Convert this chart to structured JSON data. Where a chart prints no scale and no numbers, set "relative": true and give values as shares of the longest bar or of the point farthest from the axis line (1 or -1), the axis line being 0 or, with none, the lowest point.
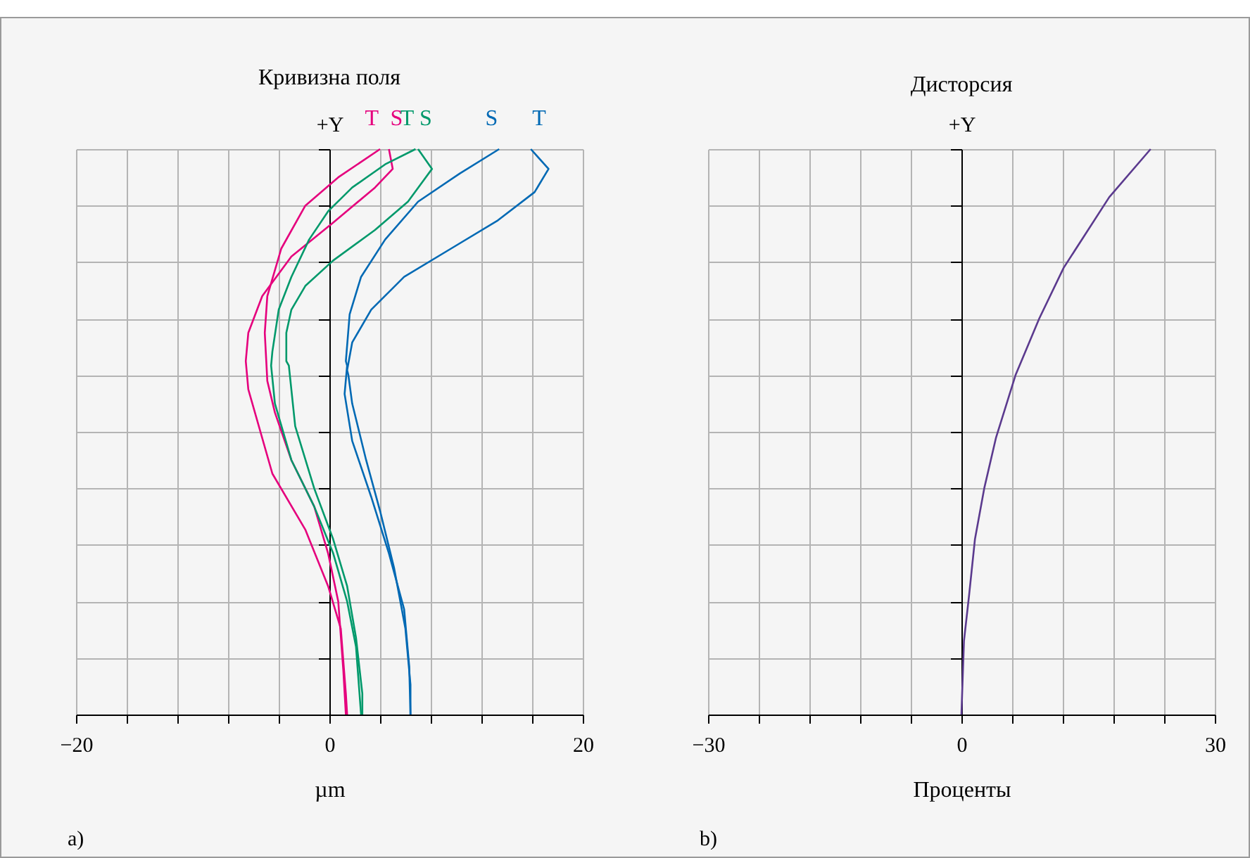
{
  "chart_data": [
    {
      "type": "line",
      "title": "Кривизна поля",
      "xlabel": "µm",
      "ylabel": "+Y",
      "relative": true,
      "grid": true,
      "annotations": [
        "a)"
      ],
      "xlim": [
        -20,
        20
      ],
      "xticks": [
        {
          "value": -20,
          "label": "−20"
        },
        {
          "value": -16,
          "label": null
        },
        {
          "value": -12,
          "label": null
        },
        {
          "value": -8,
          "label": null
        },
        {
          "value": -4,
          "label": null
        },
        0,
        {
          "value": 4,
          "label": null
        },
        {
          "value": 8,
          "label": null
        },
        {
          "value": 12,
          "label": null
        },
        {
          "value": 16,
          "label": null
        },
        20
      ],
      "series": [
        {
          "name": "T",
          "color": "#e5007d",
          "x": [
            1.3,
            1.1,
            0.7,
            -0.1,
            -1.2,
            -3.0,
            -4.3,
            -4.9,
            -5.1,
            -4.9,
            -3.8,
            -1.9,
            0.7,
            4.0
          ],
          "values": [
            0,
            0.078,
            0.2,
            0.285,
            0.368,
            0.45,
            0.534,
            0.59,
            0.675,
            0.74,
            0.824,
            0.9,
            0.95,
            1.0
          ]
        },
        {
          "name": "S",
          "color": "#e5007d",
          "x": [
            1.4,
            1.3,
            0.9,
            -0.1,
            -1.9,
            -4.5,
            -6.4,
            -6.6,
            -6.4,
            -5.3,
            -3.0,
            0.3,
            3.6,
            5.0,
            4.7
          ],
          "values": [
            0,
            0.037,
            0.152,
            0.227,
            0.327,
            0.426,
            0.575,
            0.625,
            0.675,
            0.74,
            0.81,
            0.87,
            0.932,
            0.965,
            1.0
          ]
        },
        {
          "name": "T",
          "color": "#00996b",
          "x": [
            2.5,
            2.1,
            1.4,
            0.3,
            -1.2,
            -3.0,
            -4.3,
            -4.6,
            -4.5,
            -4.0,
            -3.0,
            -1.6,
            -0.1,
            1.8,
            4.4,
            6.8
          ],
          "values": [
            0,
            0.12,
            0.2,
            0.285,
            0.368,
            0.45,
            0.55,
            0.617,
            0.642,
            0.716,
            0.774,
            0.84,
            0.89,
            0.932,
            0.973,
            1.0
          ]
        },
        {
          "name": "S",
          "color": "#00996b",
          "x": [
            2.6,
            2.6,
            2.1,
            1.4,
            0.3,
            -1.2,
            -2.7,
            -3.2,
            -3.4,
            -3.4,
            -3.0,
            -1.9,
            0.3,
            3.6,
            6.2,
            8.1,
            7.0
          ],
          "values": [
            0,
            0.037,
            0.136,
            0.227,
            0.31,
            0.4,
            0.51,
            0.617,
            0.625,
            0.675,
            0.716,
            0.758,
            0.803,
            0.857,
            0.907,
            0.965,
            1.0
          ]
        },
        {
          "name": "S",
          "color": "#0069b4",
          "x": [
            6.4,
            6.3,
            5.9,
            4.7,
            3.3,
            1.8,
            1.2,
            1.4,
            1.3,
            1.6,
            2.5,
            4.4,
            7.0,
            10.3,
            13.4
          ],
          "values": [
            0,
            0.086,
            0.186,
            0.285,
            0.385,
            0.484,
            0.567,
            0.617,
            0.625,
            0.708,
            0.774,
            0.84,
            0.907,
            0.957,
            1.0
          ]
        },
        {
          "name": "T",
          "color": "#0069b4",
          "x": [
            6.4,
            6.4,
            6.0,
            5.1,
            4.0,
            2.9,
            1.8,
            1.5,
            1.4,
            1.8,
            3.3,
            5.9,
            9.6,
            13.3,
            16.2,
            17.3,
            15.9
          ],
          "values": [
            0,
            0.053,
            0.152,
            0.26,
            0.36,
            0.45,
            0.55,
            0.6,
            0.609,
            0.658,
            0.716,
            0.774,
            0.824,
            0.874,
            0.924,
            0.965,
            1.0
          ]
        }
      ]
    },
    {
      "type": "line",
      "title": "Дисторсия",
      "xlabel": "Проценты",
      "ylabel": "+Y",
      "relative": true,
      "grid": true,
      "annotations": [
        "b)"
      ],
      "xlim": [
        -30,
        30
      ],
      "xticks": [
        {
          "value": -30,
          "label": "−30"
        },
        {
          "value": -24,
          "label": null
        },
        {
          "value": -18,
          "label": null
        },
        {
          "value": -12,
          "label": null
        },
        {
          "value": -6,
          "label": null
        },
        0,
        {
          "value": 6,
          "label": null
        },
        {
          "value": 12,
          "label": null
        },
        {
          "value": 18,
          "label": null
        },
        {
          "value": 24,
          "label": null
        },
        30
      ],
      "series": [
        {
          "color": "#5b3a8e",
          "x": [
            0,
            0.3,
            0.9,
            1.6,
            2.7,
            4.1,
            6.4,
            9.2,
            12.1,
            17.5,
            22.4
          ],
          "values": [
            0,
            0.13,
            0.21,
            0.31,
            0.4,
            0.49,
            0.6,
            0.7,
            0.79,
            0.915,
            1.0
          ]
        }
      ]
    }
  ]
}
